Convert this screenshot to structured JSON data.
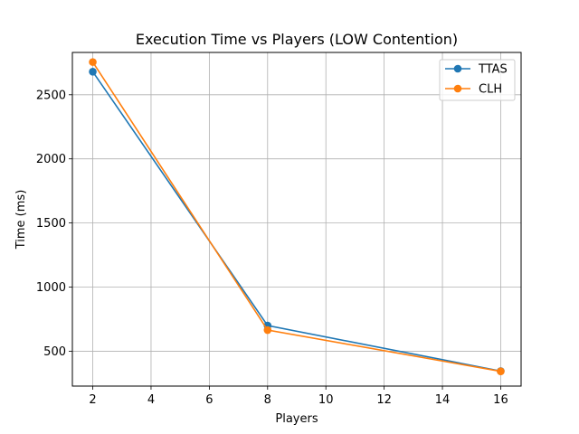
{
  "chart_data": {
    "type": "line",
    "title": "Execution Time vs Players (LOW Contention)",
    "xlabel": "Players",
    "ylabel": "Time (ms)",
    "x": [
      2,
      8,
      16
    ],
    "xlim": [
      1.3,
      16.7
    ],
    "ylim": [
      228,
      2830
    ],
    "xticks": [
      2,
      4,
      6,
      8,
      10,
      12,
      14,
      16
    ],
    "yticks": [
      500,
      1000,
      1500,
      2000,
      2500
    ],
    "grid": true,
    "legend_position": "top-right",
    "series": [
      {
        "name": "TTAS",
        "values": [
          2680,
          700,
          345
        ],
        "color": "#1f77b4"
      },
      {
        "name": "CLH",
        "values": [
          2755,
          665,
          343
        ],
        "color": "#ff7f0e"
      }
    ]
  }
}
